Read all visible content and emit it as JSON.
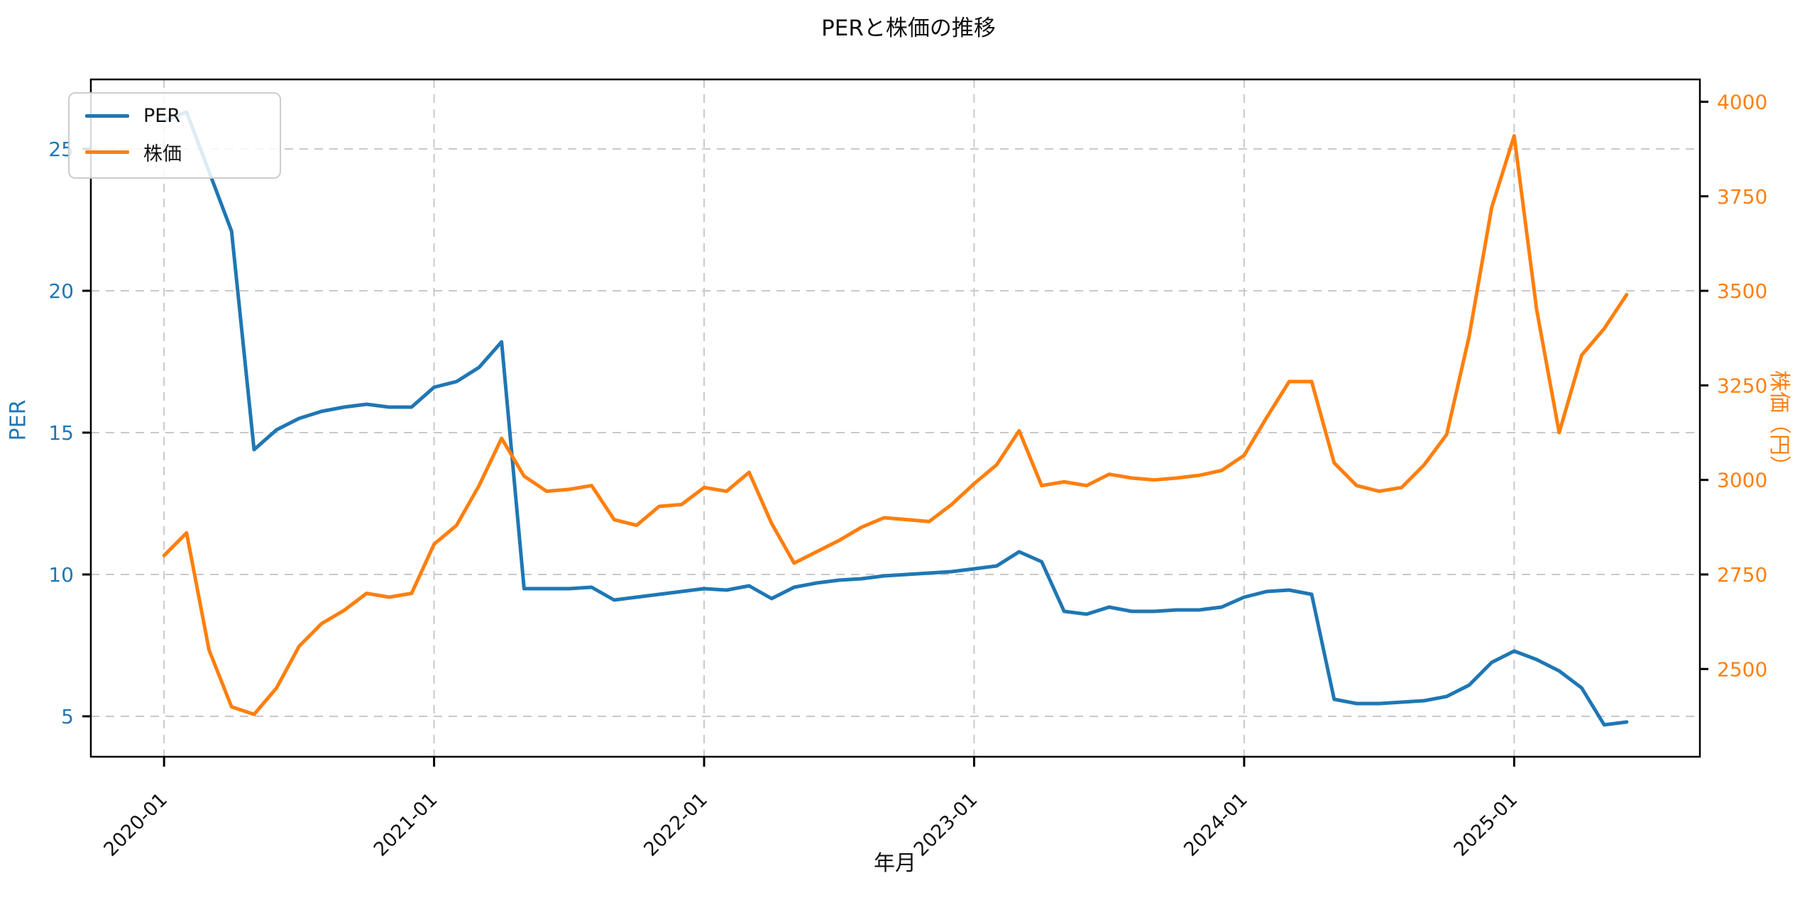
{
  "title": "PERと株価の推移",
  "legend": {
    "per_label": "PER",
    "price_label": "株価"
  },
  "axes": {
    "x_title": "年月",
    "y_left_title": "PER",
    "y_right_title": "株価（円）",
    "y_left_color": "#1f77b4",
    "y_right_color": "#ff7f0e",
    "tick_label_color_x": "#111111"
  },
  "chart_data": {
    "type": "line",
    "title": "PERと株価の推移",
    "xlabel": "年月",
    "ylabel_left": "PER",
    "ylabel_right": "株価（円）",
    "grid": true,
    "grid_style": "dashed",
    "legend_position": "upper left",
    "x": [
      "2020-01",
      "2020-02",
      "2020-03",
      "2020-04",
      "2020-05",
      "2020-06",
      "2020-07",
      "2020-08",
      "2020-09",
      "2020-10",
      "2020-11",
      "2020-12",
      "2021-01",
      "2021-02",
      "2021-03",
      "2021-04",
      "2021-05",
      "2021-06",
      "2021-07",
      "2021-08",
      "2021-09",
      "2021-10",
      "2021-11",
      "2021-12",
      "2022-01",
      "2022-02",
      "2022-03",
      "2022-04",
      "2022-05",
      "2022-06",
      "2022-07",
      "2022-08",
      "2022-09",
      "2022-10",
      "2022-11",
      "2022-12",
      "2023-01",
      "2023-02",
      "2023-03",
      "2023-04",
      "2023-05",
      "2023-06",
      "2023-07",
      "2023-08",
      "2023-09",
      "2023-10",
      "2023-11",
      "2023-12",
      "2024-01",
      "2024-02",
      "2024-03",
      "2024-04",
      "2024-05",
      "2024-06",
      "2024-07",
      "2024-08",
      "2024-09",
      "2024-10",
      "2024-11",
      "2024-12",
      "2025-01",
      "2025-02",
      "2025-03",
      "2025-04",
      "2025-05",
      "2025-06"
    ],
    "x_tick_labels": [
      "2020-01",
      "2021-01",
      "2022-01",
      "2023-01",
      "2024-01",
      "2025-01"
    ],
    "x_tick_indices": [
      0,
      12,
      24,
      36,
      48,
      60
    ],
    "x_tick_rotation_deg": 45,
    "series": [
      {
        "name": "PER",
        "axis": "left",
        "color": "#1f77b4",
        "values": [
          26.0,
          26.3,
          24.2,
          22.1,
          14.4,
          15.1,
          15.5,
          15.75,
          15.9,
          16.0,
          15.9,
          15.9,
          16.6,
          16.8,
          17.3,
          18.2,
          9.5,
          9.5,
          9.5,
          9.55,
          9.1,
          9.2,
          9.3,
          9.4,
          9.5,
          9.45,
          9.6,
          9.15,
          9.55,
          9.7,
          9.8,
          9.85,
          9.95,
          10.0,
          10.05,
          10.1,
          10.2,
          10.3,
          10.8,
          10.45,
          8.7,
          8.6,
          8.85,
          8.7,
          8.7,
          8.75,
          8.75,
          8.85,
          9.2,
          9.4,
          9.45,
          9.3,
          5.6,
          5.45,
          5.45,
          5.5,
          5.55,
          5.7,
          6.1,
          6.9,
          7.3,
          7.0,
          6.6,
          6.0,
          4.7,
          4.8
        ]
      },
      {
        "name": "株価",
        "axis": "right",
        "color": "#ff7f0e",
        "values": [
          2800,
          2860,
          2550,
          2400,
          2380,
          2450,
          2560,
          2620,
          2655,
          2700,
          2690,
          2700,
          2830,
          2880,
          2985,
          3110,
          3010,
          2970,
          2975,
          2985,
          2895,
          2880,
          2930,
          2935,
          2980,
          2970,
          3020,
          2885,
          2780,
          2810,
          2840,
          2875,
          2900,
          2895,
          2890,
          2935,
          2990,
          3040,
          3130,
          2985,
          2995,
          2985,
          3015,
          3005,
          3000,
          3005,
          3012,
          3025,
          3065,
          3165,
          3260,
          3260,
          3045,
          2985,
          2970,
          2980,
          3040,
          3120,
          3380,
          3720,
          3910,
          3450,
          3125,
          3330,
          3400,
          3490
        ]
      }
    ],
    "y_left_ticks": [
      5,
      10,
      15,
      20,
      25
    ],
    "y_left_lim": [
      3.575,
      27.45
    ],
    "y_right_ticks": [
      2500,
      2750,
      3000,
      3250,
      3500,
      3750,
      4000
    ],
    "y_right_lim": [
      2268,
      4059
    ]
  }
}
